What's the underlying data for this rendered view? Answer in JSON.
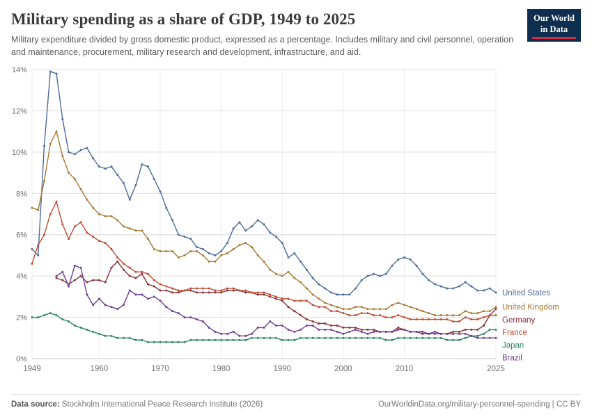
{
  "header": {
    "title": "Military spending as a share of GDP, 1949 to 2025",
    "subtitle": "Military expenditure divided by gross domestic product, expressed as a percentage. Includes military and civil personnel, operation and maintenance, procurement, military research and development, infrastructure, and aid.",
    "logo": {
      "line1": "Our World",
      "line2": "in Data",
      "bg": "#0d2e4e",
      "accent": "#d7263d"
    }
  },
  "chart_data": {
    "type": "line",
    "title": "Military spending as a share of GDP, 1949 to 2025",
    "xlabel": "",
    "ylabel": "",
    "y_max": 14,
    "y_ticks": [
      "0%",
      "2%",
      "4%",
      "6%",
      "8%",
      "10%",
      "12%",
      "14%"
    ],
    "x_range": [
      1949,
      2025
    ],
    "x_ticks": [
      1949,
      1960,
      1970,
      1980,
      1990,
      2000,
      2010,
      2025
    ],
    "grid": "on",
    "legend_position": "right",
    "series": [
      {
        "name": "United States",
        "color": "#4C6A9C",
        "start_year": 1949,
        "values": [
          5.3,
          5.0,
          10.3,
          13.9,
          13.8,
          11.6,
          10.0,
          9.9,
          10.1,
          10.2,
          9.7,
          9.3,
          9.2,
          9.3,
          8.9,
          8.5,
          7.7,
          8.4,
          9.4,
          9.3,
          8.7,
          8.1,
          7.3,
          6.7,
          6.0,
          5.9,
          5.8,
          5.4,
          5.3,
          5.1,
          5.0,
          5.2,
          5.6,
          6.3,
          6.6,
          6.2,
          6.4,
          6.7,
          6.5,
          6.1,
          5.9,
          5.6,
          4.9,
          5.1,
          4.7,
          4.3,
          3.9,
          3.6,
          3.4,
          3.2,
          3.1,
          3.1,
          3.1,
          3.4,
          3.8,
          4.0,
          4.1,
          4.0,
          4.1,
          4.5,
          4.8,
          4.9,
          4.8,
          4.5,
          4.1,
          3.8,
          3.6,
          3.5,
          3.4,
          3.4,
          3.5,
          3.7,
          3.5,
          3.3,
          3.3,
          3.4,
          3.2
        ]
      },
      {
        "name": "United Kingdom",
        "color": "#A67A31",
        "start_year": 1949,
        "values": [
          7.3,
          7.2,
          8.6,
          10.4,
          11.0,
          9.8,
          9.0,
          8.7,
          8.2,
          7.7,
          7.3,
          7.0,
          6.9,
          6.9,
          6.7,
          6.4,
          6.3,
          6.2,
          6.2,
          5.8,
          5.3,
          5.2,
          5.2,
          5.2,
          4.9,
          5.0,
          5.2,
          5.2,
          5.0,
          4.7,
          4.7,
          5.0,
          5.1,
          5.3,
          5.5,
          5.6,
          5.4,
          5.0,
          4.7,
          4.3,
          4.1,
          4.0,
          4.2,
          3.9,
          3.7,
          3.4,
          3.1,
          2.9,
          2.7,
          2.6,
          2.5,
          2.4,
          2.4,
          2.5,
          2.5,
          2.4,
          2.4,
          2.4,
          2.4,
          2.6,
          2.7,
          2.6,
          2.5,
          2.4,
          2.3,
          2.2,
          2.1,
          2.1,
          2.1,
          2.1,
          2.1,
          2.3,
          2.2,
          2.2,
          2.3,
          2.3,
          2.5
        ]
      },
      {
        "name": "Germany",
        "color": "#883039",
        "start_year": 1953,
        "values": [
          3.9,
          3.8,
          3.6,
          3.8,
          4.0,
          3.7,
          3.8,
          3.8,
          3.7,
          4.4,
          4.7,
          4.3,
          4.0,
          3.9,
          4.1,
          3.6,
          3.5,
          3.3,
          3.3,
          3.2,
          3.2,
          3.3,
          3.3,
          3.2,
          3.2,
          3.2,
          3.2,
          3.2,
          3.3,
          3.3,
          3.3,
          3.2,
          3.2,
          3.1,
          3.1,
          3.0,
          2.9,
          2.8,
          2.5,
          2.3,
          2.1,
          1.9,
          1.8,
          1.7,
          1.7,
          1.6,
          1.6,
          1.5,
          1.5,
          1.5,
          1.4,
          1.4,
          1.4,
          1.3,
          1.3,
          1.3,
          1.5,
          1.4,
          1.3,
          1.3,
          1.2,
          1.2,
          1.2,
          1.2,
          1.2,
          1.3,
          1.3,
          1.4,
          1.4,
          1.4,
          1.6,
          2.1,
          2.4
        ]
      },
      {
        "name": "France",
        "color": "#BE4B31",
        "start_year": 1949,
        "values": [
          4.6,
          5.5,
          6.0,
          7.0,
          7.6,
          6.5,
          5.8,
          6.4,
          6.6,
          6.1,
          5.9,
          5.7,
          5.6,
          5.3,
          4.9,
          4.6,
          4.4,
          4.2,
          4.2,
          4.1,
          3.8,
          3.6,
          3.5,
          3.4,
          3.3,
          3.3,
          3.4,
          3.4,
          3.4,
          3.4,
          3.3,
          3.3,
          3.4,
          3.4,
          3.3,
          3.3,
          3.2,
          3.2,
          3.2,
          3.1,
          3.0,
          2.9,
          2.9,
          2.8,
          2.8,
          2.8,
          2.6,
          2.5,
          2.5,
          2.3,
          2.3,
          2.2,
          2.1,
          2.1,
          2.2,
          2.2,
          2.1,
          2.1,
          2.0,
          2.0,
          2.1,
          2.0,
          1.9,
          1.9,
          1.9,
          1.9,
          1.9,
          1.9,
          1.9,
          1.8,
          1.8,
          2.0,
          1.9,
          1.9,
          2.0,
          2.1,
          2.1
        ]
      },
      {
        "name": "Japan",
        "color": "#2C8465",
        "start_year": 1949,
        "values": [
          2.0,
          2.0,
          2.1,
          2.2,
          2.1,
          1.9,
          1.8,
          1.6,
          1.5,
          1.4,
          1.3,
          1.2,
          1.1,
          1.1,
          1.0,
          1.0,
          1.0,
          0.9,
          0.9,
          0.8,
          0.8,
          0.8,
          0.8,
          0.8,
          0.8,
          0.8,
          0.9,
          0.9,
          0.9,
          0.9,
          0.9,
          0.9,
          0.9,
          0.9,
          0.9,
          0.9,
          1.0,
          1.0,
          1.0,
          1.0,
          1.0,
          0.9,
          0.9,
          0.9,
          1.0,
          1.0,
          1.0,
          1.0,
          1.0,
          1.0,
          1.0,
          1.0,
          1.0,
          1.0,
          1.0,
          1.0,
          1.0,
          1.0,
          0.9,
          0.9,
          1.0,
          1.0,
          1.0,
          1.0,
          1.0,
          1.0,
          1.0,
          1.0,
          0.9,
          0.9,
          0.9,
          1.0,
          1.1,
          1.1,
          1.2,
          1.4,
          1.4
        ]
      },
      {
        "name": "Brazil",
        "color": "#6D3E91",
        "start_year": 1953,
        "values": [
          4.0,
          4.2,
          3.5,
          4.5,
          4.4,
          3.1,
          2.6,
          2.9,
          2.6,
          2.5,
          2.4,
          2.6,
          3.3,
          3.1,
          3.1,
          2.9,
          3.0,
          2.8,
          2.5,
          2.3,
          2.2,
          2.0,
          2.0,
          1.9,
          1.8,
          1.5,
          1.3,
          1.2,
          1.2,
          1.3,
          1.1,
          1.1,
          1.2,
          1.5,
          1.5,
          1.8,
          1.6,
          1.6,
          1.4,
          1.3,
          1.4,
          1.6,
          1.6,
          1.4,
          1.4,
          1.4,
          1.3,
          1.2,
          1.3,
          1.4,
          1.3,
          1.2,
          1.3,
          1.3,
          1.3,
          1.3,
          1.4,
          1.4,
          1.3,
          1.3,
          1.3,
          1.2,
          1.3,
          1.2,
          1.2,
          1.2,
          1.2,
          1.2,
          1.1,
          1.0,
          1.0,
          1.0,
          1.0
        ]
      }
    ]
  },
  "footer": {
    "datasource_label": "Data source:",
    "datasource_value": "Stockholm International Peace Research Institute (2026)",
    "link": "OurWorldinData.org/military-personnel-spending | CC BY"
  }
}
